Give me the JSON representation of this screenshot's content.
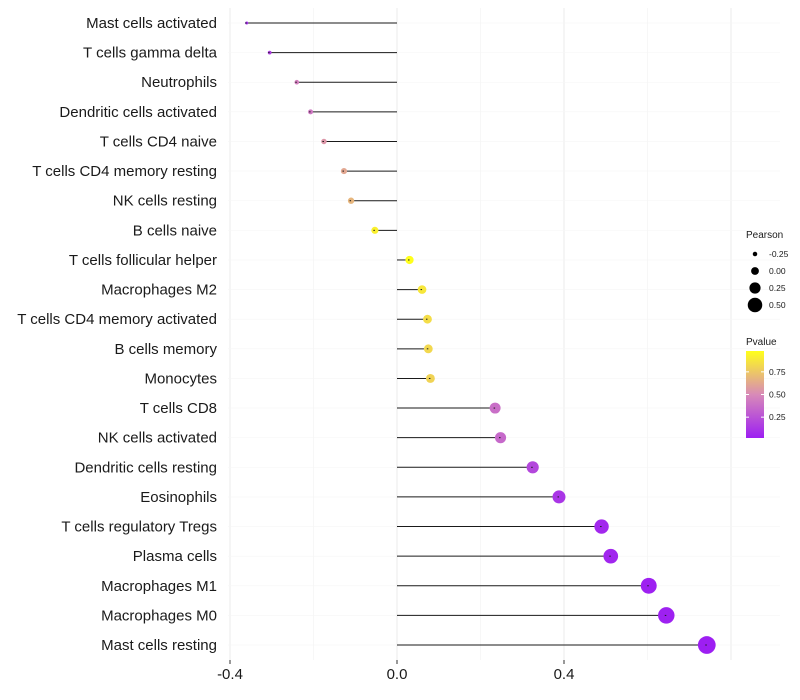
{
  "chart_data": {
    "type": "lollipop",
    "xlim": [
      -0.4,
      0.75
    ],
    "x_ticks": [
      -0.4,
      0.0,
      0.4
    ],
    "x_tick_labels": [
      "-0.4",
      "0.0",
      "0.4"
    ],
    "categories": [
      "Mast cells activated",
      "T cells gamma delta",
      "Neutrophils",
      "Dendritic cells activated",
      "T cells CD4 naive",
      "T cells CD4 memory resting",
      "NK cells resting",
      "B cells naive",
      "T cells follicular helper",
      "Macrophages M2",
      "T cells CD4 memory activated",
      "B cells memory",
      "Monocytes",
      "T cells CD8",
      "NK cells activated",
      "Dendritic cells resting",
      "Eosinophils",
      "T cells regulatory  Tregs ",
      "Plasma cells",
      "Macrophages M1",
      "Macrophages M0",
      "Mast cells resting"
    ],
    "pearson": [
      -0.36,
      -0.305,
      -0.24,
      -0.207,
      -0.175,
      -0.127,
      -0.11,
      -0.053,
      0.03,
      0.06,
      0.073,
      0.075,
      0.08,
      0.235,
      0.248,
      0.325,
      0.388,
      0.49,
      0.512,
      0.603,
      0.645,
      0.742
    ],
    "pvalue": [
      0.08,
      0.15,
      0.45,
      0.42,
      0.55,
      0.62,
      0.68,
      0.92,
      0.98,
      0.88,
      0.84,
      0.82,
      0.8,
      0.38,
      0.35,
      0.2,
      0.12,
      0.06,
      0.05,
      0.03,
      0.03,
      0.02
    ],
    "size_legend": {
      "title": "Pearson",
      "values": [
        -0.25,
        0.0,
        0.25,
        0.5
      ],
      "labels": [
        "-0.25",
        "0.00",
        "0.25",
        "0.50"
      ]
    },
    "color_legend": {
      "title": "Pvalue",
      "ticks": [
        0.25,
        0.5,
        0.75
      ],
      "labels": [
        "0.25",
        "0.50",
        "0.75"
      ],
      "low_color": "#9d1ff2",
      "mid_color": "#d88ab8",
      "high_color": "#ffff1a",
      "range": [
        0.02,
        0.98
      ]
    }
  }
}
